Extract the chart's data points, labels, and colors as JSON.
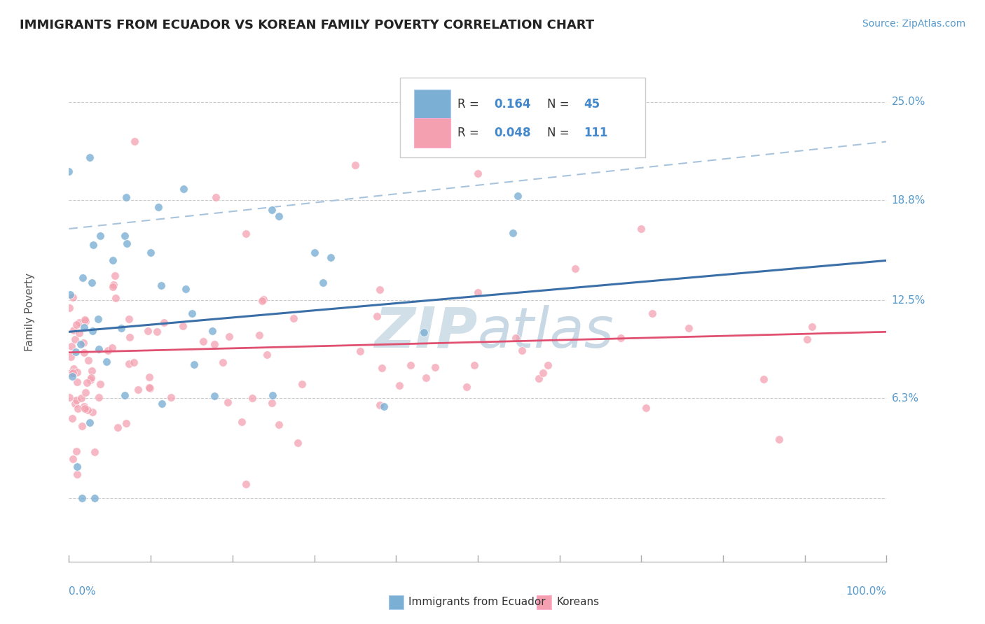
{
  "title": "IMMIGRANTS FROM ECUADOR VS KOREAN FAMILY POVERTY CORRELATION CHART",
  "source": "Source: ZipAtlas.com",
  "ylabel": "Family Poverty",
  "ecuador_R": 0.164,
  "ecuador_N": 45,
  "korean_R": 0.048,
  "korean_N": 111,
  "ecuador_color": "#7BAFD4",
  "korean_color": "#F4A0B0",
  "ecuador_line_color": "#3A6FA8",
  "korean_line_color": "#E05070",
  "dashed_line_color": "#A8C4DC",
  "background_color": "#FFFFFF",
  "watermark_color": "#D0DFE8",
  "ytick_positions": [
    0.0,
    6.3,
    12.5,
    18.8,
    25.0
  ],
  "ytick_labels": [
    "",
    "6.3%",
    "12.5%",
    "18.8%",
    "25.0%"
  ],
  "xmin": 0.0,
  "xmax": 100.0,
  "ymin": -4.0,
  "ymax": 27.5
}
